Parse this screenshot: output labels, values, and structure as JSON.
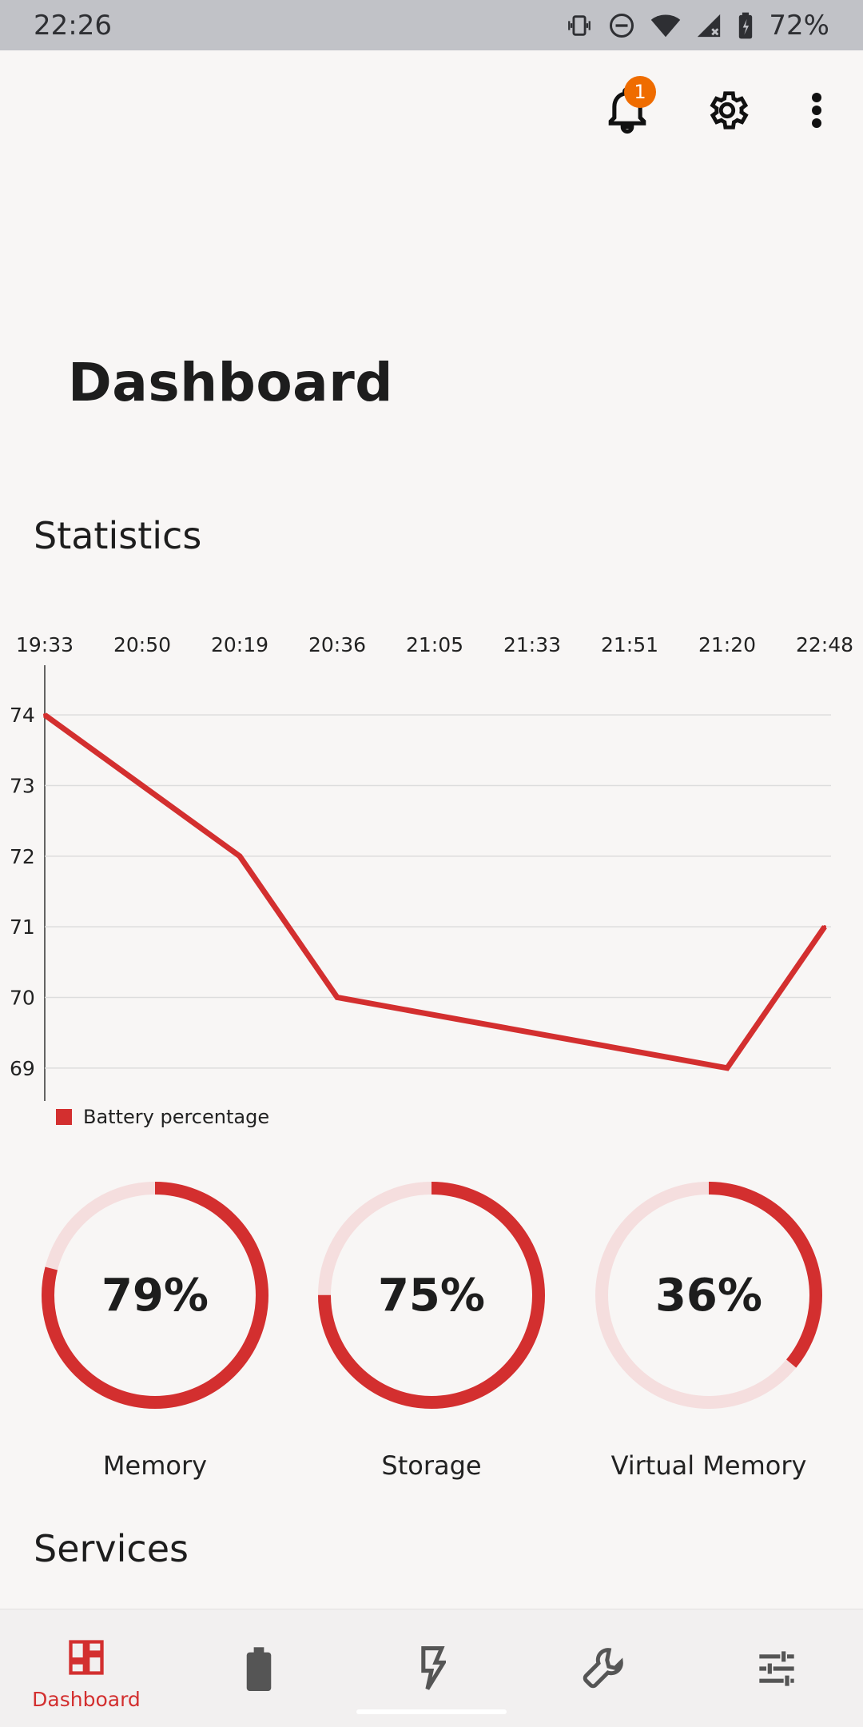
{
  "status_bar": {
    "time": "22:26",
    "battery": "72%"
  },
  "header": {
    "notification_count": "1"
  },
  "page": {
    "title": "Dashboard"
  },
  "sections": {
    "statistics": "Statistics",
    "services": "Services"
  },
  "chart_data": {
    "type": "line",
    "x": [
      "19:33",
      "20:50",
      "20:19",
      "20:36",
      "21:05",
      "21:33",
      "21:51",
      "21:20",
      "22:48"
    ],
    "series": [
      {
        "name": "Battery percentage",
        "values": [
          74,
          73,
          72,
          70,
          null,
          null,
          null,
          69,
          71
        ]
      }
    ],
    "y_ticks": [
      69,
      70,
      71,
      72,
      73,
      74
    ],
    "ylim": [
      68.5,
      74.5
    ],
    "grid": true,
    "legend": "bottom-left",
    "colors": {
      "line": "#d32f2f",
      "grid": "#dddddd"
    }
  },
  "gauges": [
    {
      "label": "Memory",
      "value": 79,
      "display": "79%"
    },
    {
      "label": "Storage",
      "value": 75,
      "display": "75%"
    },
    {
      "label": "Virtual Memory",
      "value": 36,
      "display": "36%"
    }
  ],
  "bottom_nav": {
    "items": [
      {
        "icon": "dashboard-icon",
        "label": "Dashboard",
        "active": true
      },
      {
        "icon": "battery-icon",
        "label": "",
        "active": false
      },
      {
        "icon": "flash-icon",
        "label": "",
        "active": false
      },
      {
        "icon": "wrench-icon",
        "label": "",
        "active": false
      },
      {
        "icon": "tune-icon",
        "label": "",
        "active": false
      }
    ]
  },
  "colors": {
    "accent": "#d32f2f",
    "badge": "#ef6c00",
    "background": "#f8f6f5"
  }
}
